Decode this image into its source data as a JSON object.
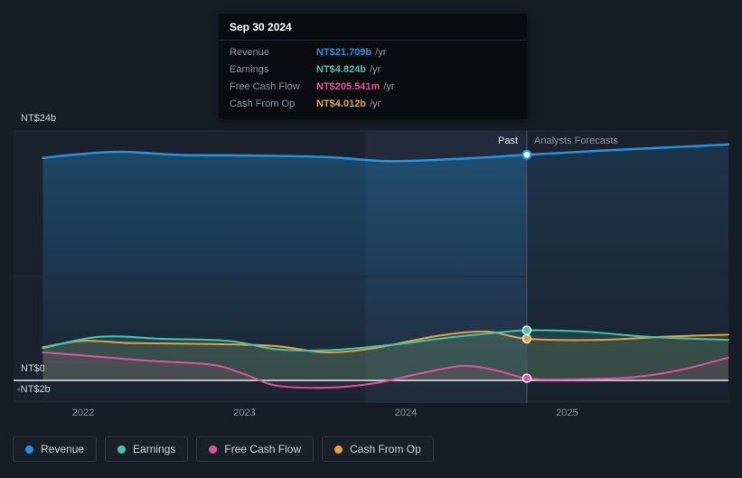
{
  "theme": {
    "background": "#171c26",
    "plot_background": "#1b222e",
    "zero_line": "#e7ebef",
    "gridline": "#29313f",
    "divider_line": "#46566c",
    "axis_text": "#8a93a0"
  },
  "tooltip": {
    "date": "Sep 30 2024",
    "rows": [
      {
        "label": "Revenue",
        "value": "NT$21.709b",
        "suffix": "/yr"
      },
      {
        "label": "Earnings",
        "value": "NT$4.824b",
        "suffix": "/yr"
      },
      {
        "label": "Free Cash Flow",
        "value": "NT$205.541m",
        "suffix": "/yr"
      },
      {
        "label": "Cash From Op",
        "value": "NT$4.012b",
        "suffix": "/yr"
      }
    ]
  },
  "axis": {
    "y_labels": [
      "NT$24b",
      "NT$0",
      "-NT$2b"
    ],
    "x_labels": [
      "2022",
      "2023",
      "2024",
      "2025"
    ]
  },
  "annotations": {
    "past": "Past",
    "forecast": "Analysts Forecasts"
  },
  "chart_data": {
    "type": "line",
    "currency_unit": "NT$ billions per year",
    "x_axis": {
      "tick_labels": [
        "2022",
        "2023",
        "2024",
        "2025"
      ],
      "range_years": [
        2021.75,
        2026.0
      ]
    },
    "y_axis": {
      "tick_labels": [
        "NT$24b",
        "NT$0",
        "-NT$2b"
      ],
      "range_b": [
        -2,
        24
      ],
      "unlabeled_gridline_b": 10
    },
    "divider_year": 2024.75,
    "divider_date": "Sep 30 2024",
    "highlight_band_years": [
      2023.75,
      2024.75
    ],
    "legend_position": "bottom-left",
    "series": [
      {
        "name": "Revenue",
        "color": "#2395e0",
        "value_at_divider_b": 21.709,
        "points": [
          [
            2021.75,
            21.4
          ],
          [
            2022.0,
            21.8
          ],
          [
            2022.25,
            22.0
          ],
          [
            2022.6,
            21.7
          ],
          [
            2023.0,
            21.65
          ],
          [
            2023.5,
            21.5
          ],
          [
            2023.9,
            21.1
          ],
          [
            2024.3,
            21.3
          ],
          [
            2024.75,
            21.709
          ],
          [
            2025.2,
            22.1
          ],
          [
            2025.6,
            22.4
          ],
          [
            2026.0,
            22.7
          ]
        ]
      },
      {
        "name": "Earnings",
        "color": "#45c4ae",
        "value_at_divider_b": 4.824,
        "points": [
          [
            2021.75,
            3.1
          ],
          [
            2022.1,
            4.2
          ],
          [
            2022.5,
            4.0
          ],
          [
            2022.9,
            3.8
          ],
          [
            2023.2,
            3.0
          ],
          [
            2023.5,
            2.9
          ],
          [
            2023.9,
            3.4
          ],
          [
            2024.2,
            4.0
          ],
          [
            2024.5,
            4.5
          ],
          [
            2024.75,
            4.824
          ],
          [
            2025.1,
            4.7
          ],
          [
            2025.5,
            4.2
          ],
          [
            2026.0,
            3.9
          ]
        ]
      },
      {
        "name": "Free Cash Flow",
        "color": "#e2539e",
        "value_at_divider_b": 0.206,
        "points": [
          [
            2021.75,
            2.7
          ],
          [
            2022.0,
            2.4
          ],
          [
            2022.4,
            1.9
          ],
          [
            2022.8,
            1.5
          ],
          [
            2023.0,
            0.6
          ],
          [
            2023.2,
            -0.5
          ],
          [
            2023.5,
            -0.7
          ],
          [
            2023.8,
            -0.3
          ],
          [
            2024.1,
            0.7
          ],
          [
            2024.35,
            1.4
          ],
          [
            2024.55,
            1.0
          ],
          [
            2024.75,
            0.206
          ],
          [
            2025.0,
            0.1
          ],
          [
            2025.4,
            0.3
          ],
          [
            2025.7,
            1.0
          ],
          [
            2026.0,
            2.2
          ]
        ]
      },
      {
        "name": "Cash From Op",
        "color": "#e9a23b",
        "value_at_divider_b": 4.012,
        "points": [
          [
            2021.75,
            3.2
          ],
          [
            2022.0,
            3.8
          ],
          [
            2022.3,
            3.6
          ],
          [
            2022.8,
            3.5
          ],
          [
            2023.2,
            3.3
          ],
          [
            2023.5,
            2.7
          ],
          [
            2023.8,
            3.1
          ],
          [
            2024.2,
            4.3
          ],
          [
            2024.5,
            4.7
          ],
          [
            2024.75,
            4.012
          ],
          [
            2025.2,
            3.9
          ],
          [
            2025.6,
            4.2
          ],
          [
            2026.0,
            4.4
          ]
        ]
      }
    ]
  }
}
